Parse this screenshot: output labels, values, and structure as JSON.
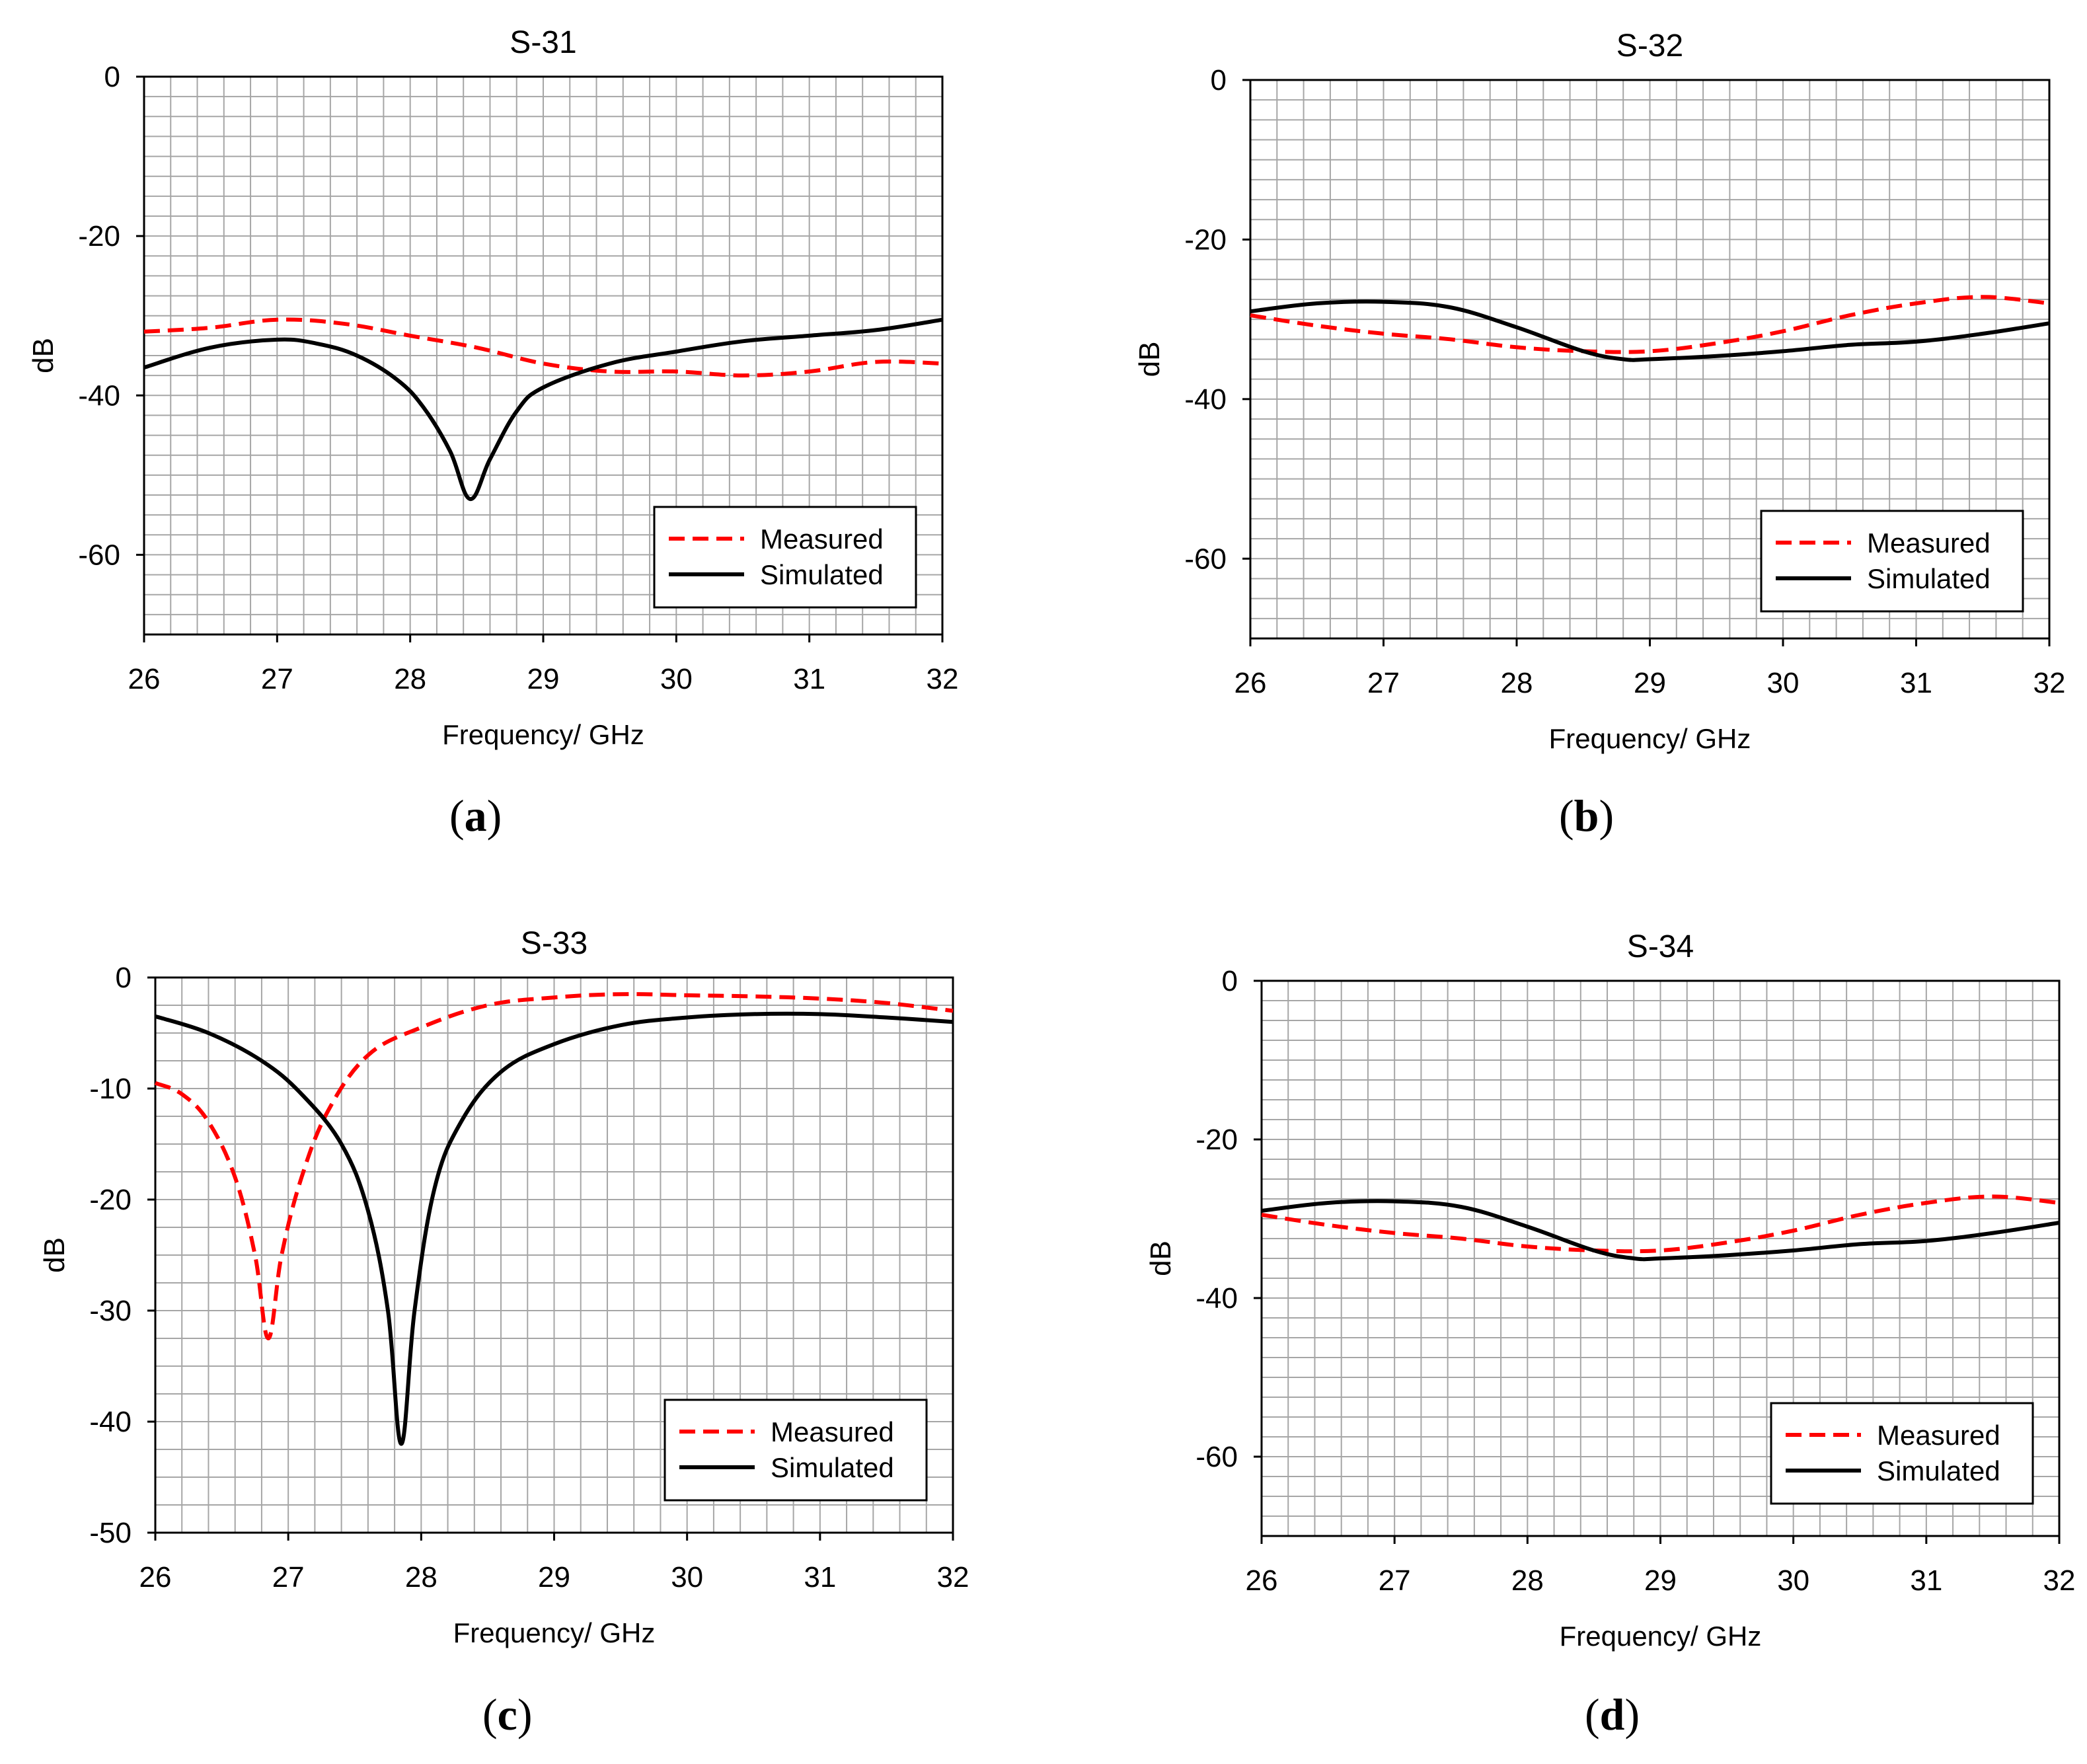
{
  "legend_labels": [
    "Measured",
    "Simulated"
  ],
  "colors": {
    "measured": "#ff0000",
    "simulated": "#000000",
    "grid": "#a6a6a6",
    "minor_grid": "#c8c8c8"
  },
  "chart_data": [
    {
      "id": "a",
      "type": "line",
      "title": "S-31",
      "caption_letter": "a",
      "xlabel": "Frequency/ GHz",
      "ylabel": "dB",
      "xlim": [
        26,
        32
      ],
      "ylim": [
        -70,
        0
      ],
      "xticks": [
        26,
        27,
        28,
        29,
        30,
        31,
        32
      ],
      "yticks": [
        0,
        -20,
        -40,
        -60
      ],
      "grid": true,
      "legend_position": "lower-right",
      "series": [
        {
          "name": "Measured",
          "style": "dashed",
          "color": "#ff0000",
          "x": [
            26,
            26.5,
            27,
            27.5,
            28,
            28.5,
            29,
            29.5,
            30,
            30.5,
            31,
            31.5,
            32
          ],
          "y": [
            -32,
            -31.5,
            -30.5,
            -31,
            -32.5,
            -34,
            -36,
            -37,
            -37,
            -37.5,
            -37,
            -35.8,
            -36
          ]
        },
        {
          "name": "Simulated",
          "style": "solid",
          "color": "#000000",
          "x": [
            26,
            26.5,
            27,
            27.3,
            27.6,
            27.9,
            28.1,
            28.3,
            28.45,
            28.6,
            28.8,
            29,
            29.5,
            30,
            30.5,
            31,
            31.5,
            32
          ],
          "y": [
            -36.5,
            -34,
            -33,
            -33.5,
            -35,
            -38,
            -41.5,
            -47,
            -53,
            -48,
            -42,
            -39,
            -36,
            -34.5,
            -33.2,
            -32.5,
            -31.8,
            -30.5
          ]
        }
      ]
    },
    {
      "id": "b",
      "type": "line",
      "title": "S-32",
      "caption_letter": "b",
      "xlabel": "Frequency/ GHz",
      "ylabel": "dB",
      "xlim": [
        26,
        32
      ],
      "ylim": [
        -70,
        0
      ],
      "xticks": [
        26,
        27,
        28,
        29,
        30,
        31,
        32
      ],
      "yticks": [
        0,
        -20,
        -40,
        -60
      ],
      "grid": true,
      "legend_position": "lower-right",
      "series": [
        {
          "name": "Measured",
          "style": "dashed",
          "color": "#ff0000",
          "x": [
            26,
            26.5,
            27,
            27.5,
            28,
            28.5,
            29,
            29.5,
            30,
            30.5,
            31,
            31.5,
            32
          ],
          "y": [
            -29.5,
            -30.8,
            -31.8,
            -32.5,
            -33.5,
            -34,
            -34,
            -33,
            -31.5,
            -29.5,
            -28,
            -27.2,
            -28
          ]
        },
        {
          "name": "Simulated",
          "style": "solid",
          "color": "#000000",
          "x": [
            26,
            26.5,
            27,
            27.5,
            28,
            28.5,
            28.8,
            29,
            29.5,
            30,
            30.5,
            31,
            31.5,
            32
          ],
          "y": [
            -29,
            -28,
            -27.8,
            -28.5,
            -31,
            -34,
            -35,
            -35,
            -34.6,
            -34,
            -33.2,
            -32.8,
            -31.8,
            -30.5
          ]
        }
      ]
    },
    {
      "id": "c",
      "type": "line",
      "title": "S-33",
      "caption_letter": "c",
      "xlabel": "Frequency/ GHz",
      "ylabel": "dB",
      "xlim": [
        26,
        32
      ],
      "ylim": [
        -50,
        0
      ],
      "xticks": [
        26,
        27,
        28,
        29,
        30,
        31,
        32
      ],
      "yticks": [
        0,
        -10,
        -20,
        -30,
        -40,
        -50
      ],
      "grid": true,
      "legend_position": "lower-right",
      "series": [
        {
          "name": "Measured",
          "style": "dashed",
          "color": "#ff0000",
          "x": [
            26,
            26.2,
            26.4,
            26.6,
            26.75,
            26.85,
            26.95,
            27.1,
            27.3,
            27.6,
            28,
            28.5,
            29,
            29.5,
            30,
            30.5,
            31,
            31.5,
            32
          ],
          "y": [
            -9.5,
            -10.5,
            -13,
            -18,
            -25,
            -32.5,
            -25,
            -18,
            -12,
            -7,
            -4.5,
            -2.5,
            -1.8,
            -1.5,
            -1.6,
            -1.7,
            -1.9,
            -2.3,
            -3
          ]
        },
        {
          "name": "Simulated",
          "style": "solid",
          "color": "#000000",
          "x": [
            26,
            26.4,
            26.8,
            27.1,
            27.4,
            27.6,
            27.75,
            27.85,
            27.95,
            28.1,
            28.3,
            28.6,
            29,
            29.5,
            30,
            30.5,
            31,
            31.5,
            32
          ],
          "y": [
            -3.5,
            -5,
            -7.5,
            -10.5,
            -15,
            -21,
            -30,
            -42,
            -30,
            -19,
            -13,
            -8.5,
            -6,
            -4.3,
            -3.6,
            -3.3,
            -3.3,
            -3.6,
            -4
          ]
        }
      ]
    },
    {
      "id": "d",
      "type": "line",
      "title": "S-34",
      "caption_letter": "d",
      "xlabel": "Frequency/ GHz",
      "ylabel": "dB",
      "xlim": [
        26,
        32
      ],
      "ylim": [
        -70,
        0
      ],
      "xticks": [
        26,
        27,
        28,
        29,
        30,
        31,
        32
      ],
      "yticks": [
        0,
        -20,
        -40,
        -60
      ],
      "grid": true,
      "legend_position": "lower-right",
      "series": [
        {
          "name": "Measured",
          "style": "dashed",
          "color": "#ff0000",
          "x": [
            26,
            26.5,
            27,
            27.5,
            28,
            28.5,
            29,
            29.5,
            30,
            30.5,
            31,
            31.5,
            32
          ],
          "y": [
            -29.5,
            -30.8,
            -31.8,
            -32.5,
            -33.5,
            -34,
            -34,
            -33,
            -31.5,
            -29.5,
            -28,
            -27.2,
            -28
          ]
        },
        {
          "name": "Simulated",
          "style": "solid",
          "color": "#000000",
          "x": [
            26,
            26.5,
            27,
            27.5,
            28,
            28.5,
            28.8,
            29,
            29.5,
            30,
            30.5,
            31,
            31.5,
            32
          ],
          "y": [
            -29,
            -28,
            -27.8,
            -28.5,
            -31,
            -34,
            -35,
            -35,
            -34.6,
            -34,
            -33.2,
            -32.8,
            -31.8,
            -30.5
          ]
        }
      ]
    }
  ]
}
